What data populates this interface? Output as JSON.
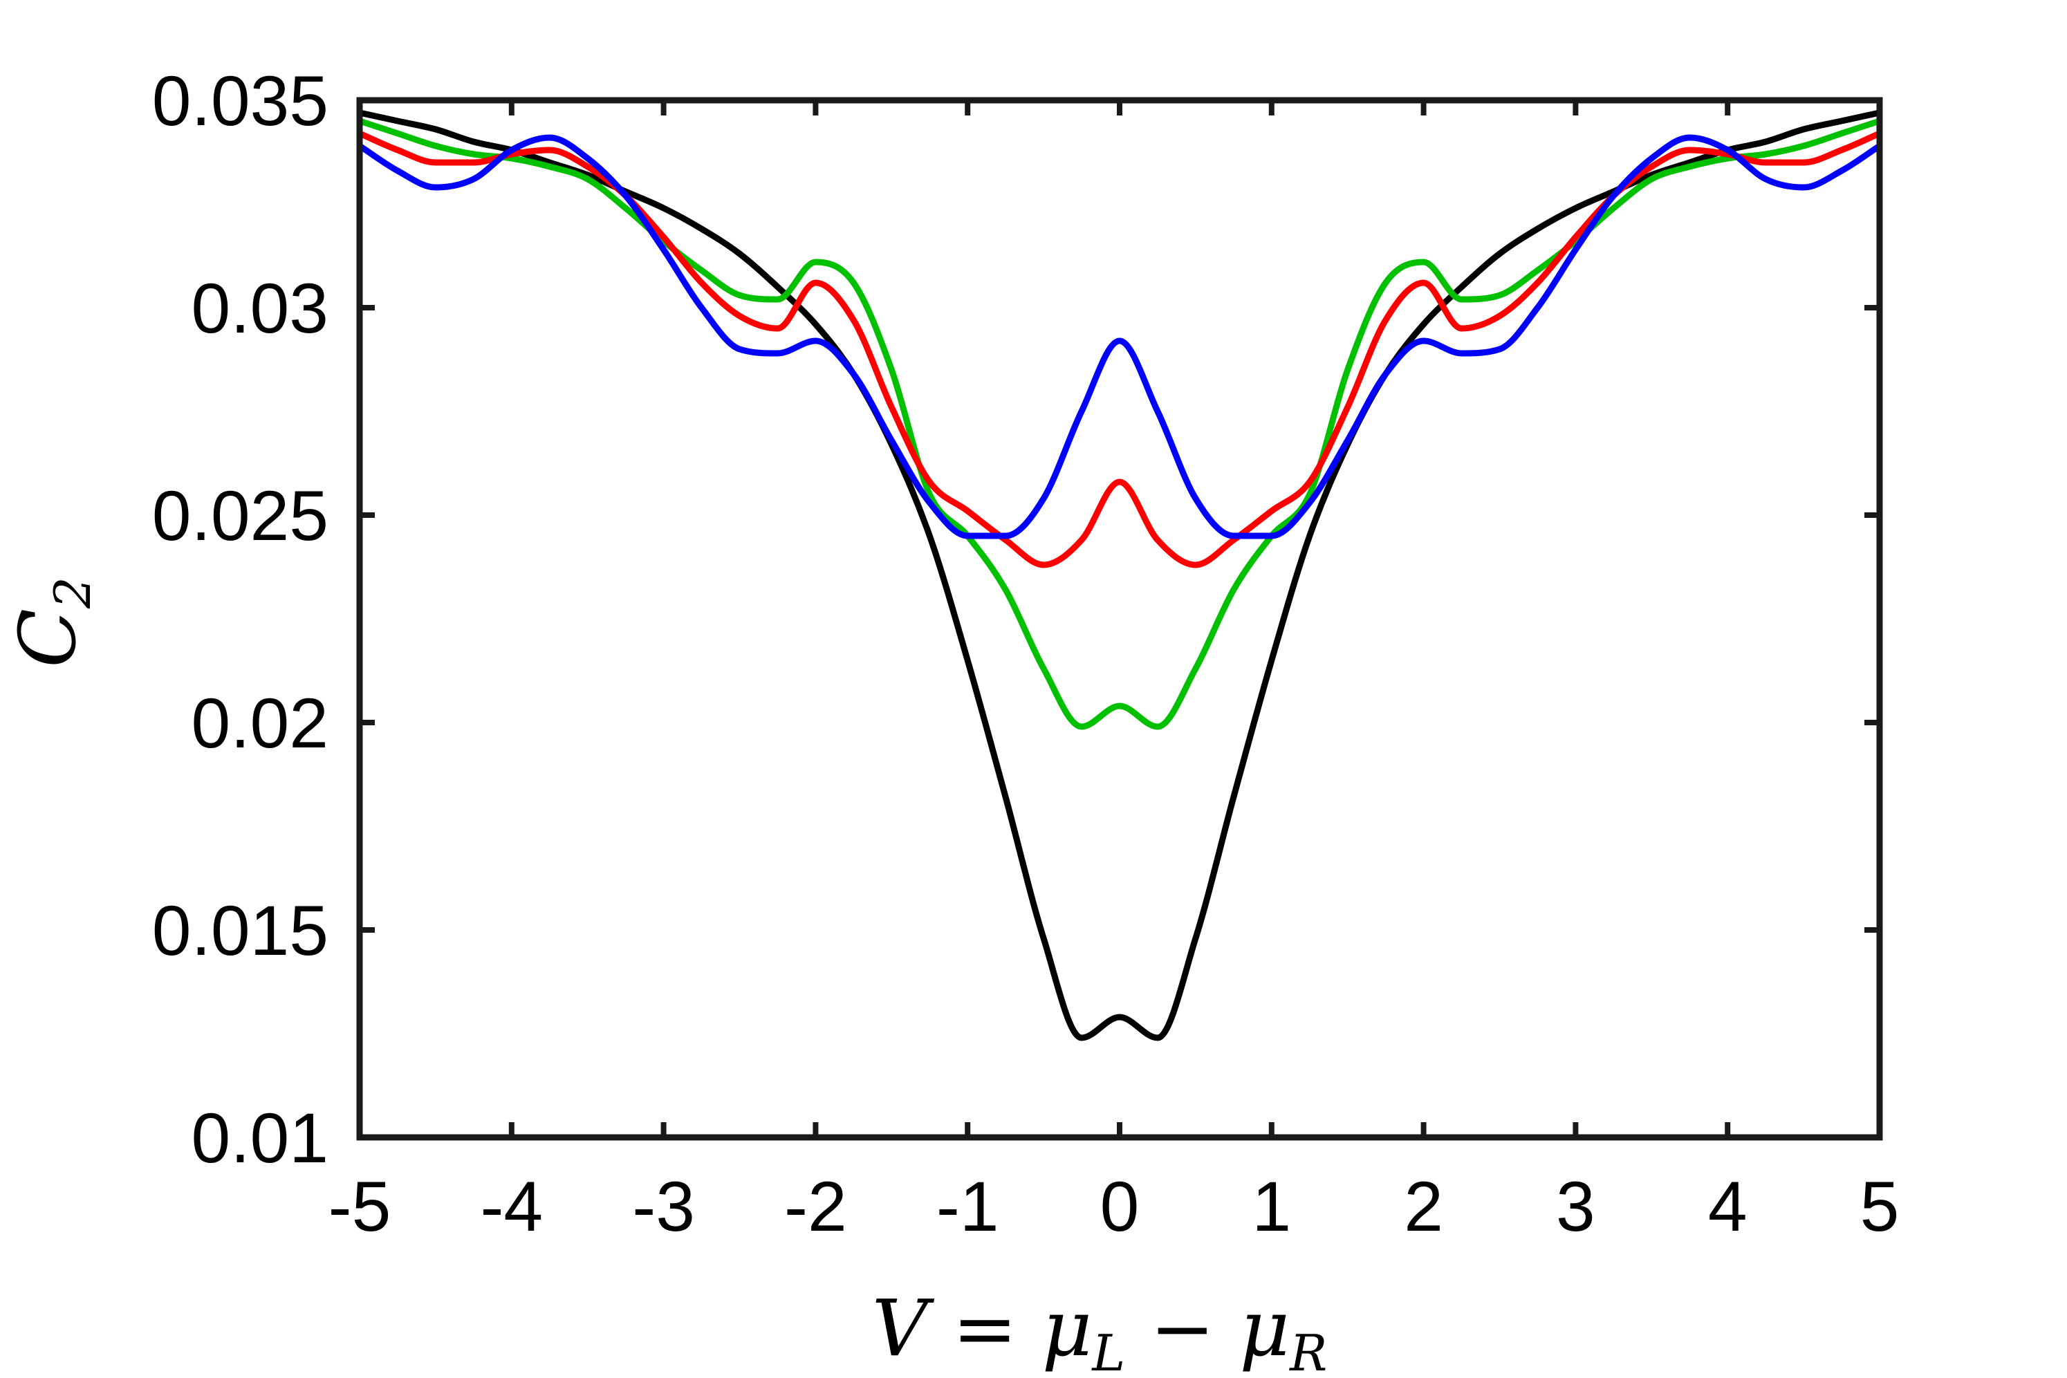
{
  "chart_data": {
    "type": "line",
    "xlabel": "V = μ",
    "xlabel_sub1": "L",
    "xlabel_mid": " − μ",
    "xlabel_sub2": "R",
    "ylabel": "C",
    "ylabel_sub": "2",
    "xlim": [
      -5,
      5
    ],
    "ylim": [
      0.01,
      0.035
    ],
    "xticks": [
      -5,
      -4,
      -3,
      -2,
      -1,
      0,
      1,
      2,
      3,
      4,
      5
    ],
    "xtick_labels": [
      "-5",
      "-4",
      "-3",
      "-2",
      "-1",
      "0",
      "1",
      "2",
      "3",
      "4",
      "5"
    ],
    "yticks": [
      0.01,
      0.015,
      0.02,
      0.025,
      0.03,
      0.035
    ],
    "ytick_labels": [
      "0.01",
      "0.015",
      "0.02",
      "0.025",
      "0.03",
      "0.035"
    ],
    "grid": false,
    "legend": "none",
    "x": [
      -5,
      -4.75,
      -4.5,
      -4.25,
      -4,
      -3.75,
      -3.5,
      -3.25,
      -3,
      -2.75,
      -2.5,
      -2.25,
      -2,
      -1.75,
      -1.5,
      -1.25,
      -1,
      -0.75,
      -0.5,
      -0.25,
      0,
      0.25,
      0.5,
      0.75,
      1,
      1.25,
      1.5,
      1.75,
      2,
      2.25,
      2.5,
      2.75,
      3,
      3.25,
      3.5,
      3.75,
      4,
      4.25,
      4.5,
      4.75,
      5
    ],
    "series": [
      {
        "color": "#000000",
        "values": [
          0.0347,
          0.0345,
          0.0343,
          0.034,
          0.0338,
          0.0335,
          0.0332,
          0.0328,
          0.0324,
          0.0319,
          0.0313,
          0.0305,
          0.0296,
          0.0284,
          0.0267,
          0.0245,
          0.0215,
          0.0182,
          0.0148,
          0.0124,
          0.0129,
          0.0124,
          0.0148,
          0.0182,
          0.0215,
          0.0245,
          0.0267,
          0.0284,
          0.0296,
          0.0305,
          0.0313,
          0.0319,
          0.0324,
          0.0328,
          0.0332,
          0.0335,
          0.0338,
          0.034,
          0.0343,
          0.0345,
          0.0347
        ]
      },
      {
        "color": "#00c000",
        "values": [
          0.0345,
          0.0342,
          0.0339,
          0.0337,
          0.0336,
          0.0334,
          0.0331,
          0.0324,
          0.0316,
          0.0309,
          0.0303,
          0.0302,
          0.0311,
          0.0306,
          0.0285,
          0.0255,
          0.0245,
          0.0232,
          0.0213,
          0.0199,
          0.0204,
          0.0199,
          0.0213,
          0.0232,
          0.0245,
          0.0255,
          0.0285,
          0.0306,
          0.0311,
          0.0302,
          0.0303,
          0.0309,
          0.0316,
          0.0324,
          0.0331,
          0.0334,
          0.0336,
          0.0337,
          0.0339,
          0.0342,
          0.0345
        ]
      },
      {
        "color": "#ff0000",
        "values": [
          0.0342,
          0.0338,
          0.0335,
          0.0335,
          0.0337,
          0.0338,
          0.0334,
          0.0327,
          0.0317,
          0.0306,
          0.0298,
          0.0295,
          0.0306,
          0.0297,
          0.0276,
          0.0258,
          0.0251,
          0.0244,
          0.0238,
          0.0244,
          0.0258,
          0.0244,
          0.0238,
          0.0244,
          0.0251,
          0.0258,
          0.0276,
          0.0297,
          0.0306,
          0.0295,
          0.0298,
          0.0306,
          0.0317,
          0.0327,
          0.0334,
          0.0338,
          0.0337,
          0.0335,
          0.0335,
          0.0338,
          0.0342
        ]
      },
      {
        "color": "#0000ff",
        "values": [
          0.0339,
          0.0333,
          0.0329,
          0.0331,
          0.0338,
          0.0341,
          0.0336,
          0.0327,
          0.0314,
          0.03,
          0.029,
          0.0289,
          0.0292,
          0.0284,
          0.0268,
          0.0253,
          0.0245,
          0.0245,
          0.0254,
          0.0275,
          0.0292,
          0.0275,
          0.0254,
          0.0245,
          0.0245,
          0.0253,
          0.0268,
          0.0284,
          0.0292,
          0.0289,
          0.029,
          0.03,
          0.0314,
          0.0327,
          0.0336,
          0.0341,
          0.0338,
          0.0331,
          0.0329,
          0.0333,
          0.0339
        ]
      }
    ]
  }
}
